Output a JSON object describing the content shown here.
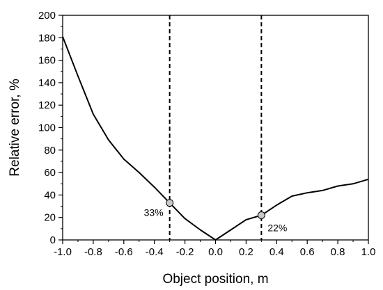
{
  "chart_data": {
    "type": "line",
    "xlabel": "Object position, m",
    "ylabel": "Relative error, %",
    "xlim": [
      -1.0,
      1.0
    ],
    "ylim": [
      0,
      200
    ],
    "xticks": [
      -1.0,
      -0.8,
      -0.6,
      -0.4,
      -0.2,
      0.0,
      0.2,
      0.4,
      0.6,
      0.8,
      1.0
    ],
    "xtick_labels": [
      "-1.0",
      "-0.8",
      "-0.6",
      "-0.4",
      "-0.2",
      "0.0",
      "0.2",
      "0.4",
      "0.6",
      "0.8",
      "1.0"
    ],
    "yticks": [
      0,
      20,
      40,
      60,
      80,
      100,
      120,
      140,
      160,
      180,
      200
    ],
    "ytick_labels": [
      "0",
      "20",
      "40",
      "60",
      "80",
      "100",
      "120",
      "140",
      "160",
      "180",
      "200"
    ],
    "grid": false,
    "series": [
      {
        "x": [
          -1.0,
          -0.9,
          -0.8,
          -0.7,
          -0.6,
          -0.5,
          -0.4,
          -0.3,
          -0.2,
          -0.1,
          0.0,
          0.1,
          0.2,
          0.3,
          0.4,
          0.5,
          0.6,
          0.7,
          0.8,
          0.9,
          1.0
        ],
        "y": [
          181,
          146,
          112,
          89,
          72,
          60,
          47,
          33,
          19,
          9,
          0,
          9,
          18,
          22,
          31,
          39,
          42,
          44,
          48,
          50,
          54
        ],
        "color": "#000000"
      }
    ],
    "vlines": [
      {
        "x": -0.3,
        "style": "dashed"
      },
      {
        "x": 0.3,
        "style": "dashed"
      }
    ],
    "markers": [
      {
        "x": -0.3,
        "y": 33,
        "label": "33%",
        "label_side": "left"
      },
      {
        "x": 0.3,
        "y": 22,
        "label": "22%",
        "label_side": "right"
      }
    ]
  }
}
